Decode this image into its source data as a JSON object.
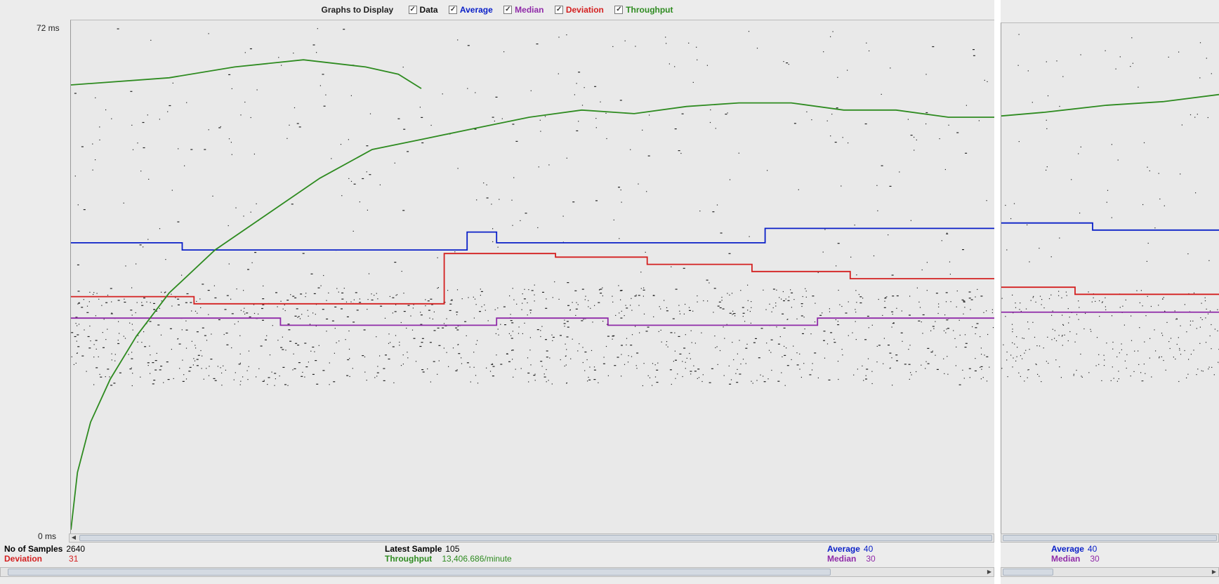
{
  "legend": {
    "title": "Graphs to Display",
    "items": [
      {
        "id": "data",
        "label": "Data",
        "color": "#111111",
        "checked": true
      },
      {
        "id": "average",
        "label": "Average",
        "color": "#0a20c8",
        "checked": true
      },
      {
        "id": "median",
        "label": "Median",
        "color": "#8f2aa8",
        "checked": true
      },
      {
        "id": "deviation",
        "label": "Deviation",
        "color": "#d42020",
        "checked": true
      },
      {
        "id": "throughput",
        "label": "Throughput",
        "color": "#2e8b20",
        "checked": true
      }
    ]
  },
  "axis": {
    "y_max_label": "72  ms",
    "y_min_label": "0  ms"
  },
  "chart_data": {
    "type": "line",
    "title": "",
    "ylabel": "",
    "xlabel": "",
    "ylim": [
      0,
      72
    ],
    "y_unit": "ms",
    "grid": false,
    "legend_position": "top",
    "series": [
      {
        "name": "Average",
        "color": "#0a20c8",
        "x": [
          0,
          170,
          170,
          605,
          605,
          650,
          650,
          1060,
          1060,
          1410
        ],
        "y": [
          41,
          41,
          40,
          40,
          42.5,
          42.5,
          41,
          41,
          43,
          43
        ]
      },
      {
        "name": "Median",
        "color": "#8f2aa8",
        "x": [
          0,
          320,
          320,
          650,
          650,
          820,
          820,
          1140,
          1140,
          1410
        ],
        "y": [
          30.5,
          30.5,
          29.5,
          29.5,
          30.5,
          30.5,
          29.5,
          29.5,
          30.5,
          30.5
        ]
      },
      {
        "name": "Deviation",
        "color": "#d42020",
        "x": [
          0,
          188,
          188,
          570,
          570,
          740,
          740,
          880,
          880,
          1040,
          1040,
          1190,
          1190,
          1410
        ],
        "y": [
          33.5,
          33.5,
          32.5,
          32.5,
          39.5,
          39.5,
          39,
          39,
          38,
          38,
          37,
          37,
          36,
          36
        ]
      },
      {
        "name": "Throughput",
        "color": "#2e8b20",
        "x": [
          0,
          10,
          30,
          60,
          100,
          150,
          220,
          300,
          380,
          460,
          540,
          620,
          700,
          780,
          860,
          940,
          1020,
          1100,
          1180,
          1260,
          1340,
          1410
        ],
        "y": [
          1,
          9,
          16,
          22,
          28,
          34,
          40,
          45,
          50,
          54,
          55.5,
          57,
          58.5,
          59.5,
          59,
          60,
          60.5,
          60.5,
          59.5,
          59.5,
          58.5,
          58.5
        ]
      },
      {
        "name": "Throughput",
        "color": "#2e8b20",
        "x": [
          0,
          150,
          250,
          355,
          450,
          500,
          535
        ],
        "y": [
          63,
          64,
          65.5,
          66.5,
          65.5,
          64.5,
          62.5
        ]
      }
    ]
  },
  "stats_main": {
    "samples_label": "No of Samples",
    "samples_value": "2640",
    "deviation_label": "Deviation",
    "deviation_value": "31",
    "latest_label": "Latest Sample",
    "latest_value": "105",
    "throughput_label": "Throughput",
    "throughput_value": "13,406.686/minute",
    "average_label": "Average",
    "average_value": "40",
    "median_label": "Median",
    "median_value": "30"
  },
  "right_panel": {
    "average_y": 44,
    "median_y": 31.5,
    "deviation_y": 35,
    "average_label": "Average",
    "average_value": "40",
    "median_label": "Median",
    "median_value": "30",
    "series_color": {
      "average": "#0a20c8",
      "median": "#8f2aa8",
      "deviation": "#d42020",
      "throughput": "#2e8b20",
      "data": "#111111"
    }
  }
}
